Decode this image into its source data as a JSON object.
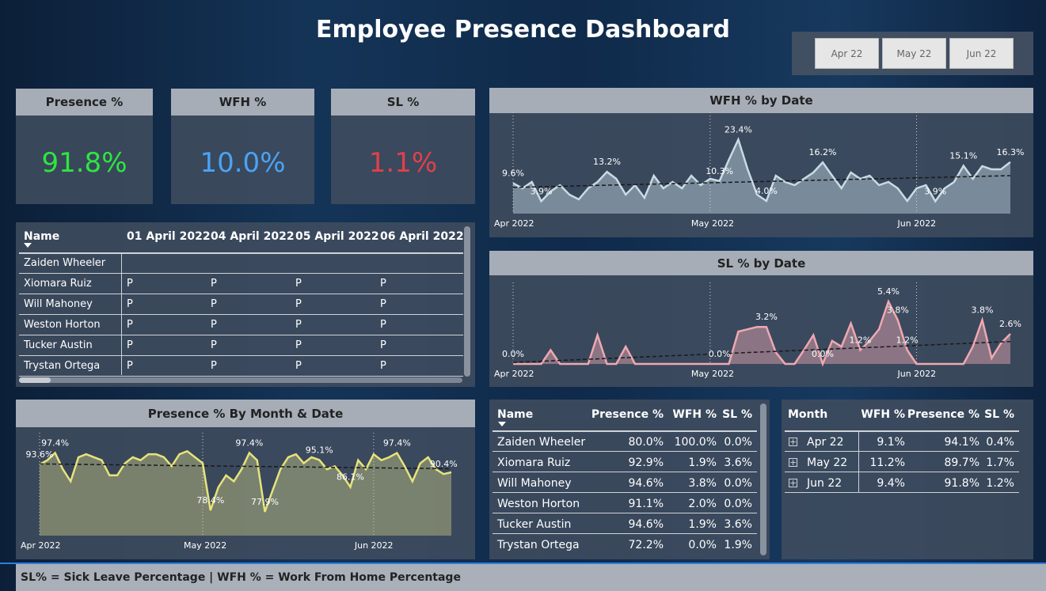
{
  "header": {
    "title": "Employee Presence Dashboard"
  },
  "slicers": [
    "Apr 22",
    "May 22",
    "Jun 22"
  ],
  "kpis": [
    {
      "title": "Presence %",
      "value": "91.8%",
      "color": "#2ee63f"
    },
    {
      "title": "WFH %",
      "value": "10.0%",
      "color": "#4aa3f5"
    },
    {
      "title": "SL %",
      "value": "1.1%",
      "color": "#e0404a"
    }
  ],
  "attendance_table": {
    "columns": [
      "Name",
      "01 April 2022",
      "04 April 2022",
      "05 April 2022",
      "06 April 2022"
    ],
    "rows": [
      {
        "name": "Zaiden Wheeler",
        "cells": []
      },
      {
        "name": "Xiomara Ruiz",
        "cells": [
          "P",
          "P",
          "P",
          "P"
        ]
      },
      {
        "name": "Will Mahoney",
        "cells": [
          "P",
          "P",
          "P",
          "P"
        ]
      },
      {
        "name": "Weston Horton",
        "cells": [
          "P",
          "P",
          "P",
          "P"
        ]
      },
      {
        "name": "Tucker Austin",
        "cells": [
          "P",
          "P",
          "P",
          "P"
        ]
      },
      {
        "name": "Trystan Ortega",
        "cells": [
          "P",
          "P",
          "P",
          "P"
        ]
      }
    ]
  },
  "summary_table": {
    "columns": [
      "Name",
      "Presence %",
      "WFH %",
      "SL %"
    ],
    "rows": [
      [
        "Zaiden Wheeler",
        "80.0%",
        "100.0%",
        "0.0%"
      ],
      [
        "Xiomara Ruiz",
        "92.9%",
        "1.9%",
        "3.6%"
      ],
      [
        "Will Mahoney",
        "94.6%",
        "3.8%",
        "0.0%"
      ],
      [
        "Weston Horton",
        "91.1%",
        "2.0%",
        "0.0%"
      ],
      [
        "Tucker Austin",
        "94.6%",
        "1.9%",
        "3.6%"
      ],
      [
        "Trystan Ortega",
        "72.2%",
        "0.0%",
        "1.9%"
      ]
    ]
  },
  "month_table": {
    "columns": [
      "Month",
      "WFH %",
      "Presence %",
      "SL %"
    ],
    "rows": [
      [
        "Apr 22",
        "9.1%",
        "94.1%",
        "0.4%"
      ],
      [
        "May 22",
        "11.2%",
        "89.7%",
        "1.7%"
      ],
      [
        "Jun 22",
        "9.4%",
        "91.8%",
        "1.2%"
      ]
    ]
  },
  "footer": {
    "text": "SL% = Sick Leave Percentage | WFH % = Work From Home Percentage"
  },
  "chart_data": [
    {
      "type": "line",
      "title": "WFH % by Date",
      "color": "#c9dbe3",
      "trend": true,
      "x": [
        0,
        1,
        2,
        3,
        4,
        5,
        6,
        7,
        8,
        9,
        10,
        11,
        12,
        13,
        14,
        15,
        16,
        17,
        18,
        19,
        20,
        21,
        22,
        23,
        24,
        25,
        26,
        27,
        28,
        29,
        30,
        31,
        32,
        33,
        34,
        35,
        36,
        37,
        38,
        39,
        40,
        41,
        42,
        43,
        44,
        45,
        46,
        47,
        48,
        49,
        50,
        51,
        52,
        53
      ],
      "xlim": [
        0,
        53
      ],
      "xticks": [
        {
          "value": 0,
          "label": "Apr 2022"
        },
        {
          "value": 21,
          "label": "May 2022"
        },
        {
          "value": 43,
          "label": "Jun 2022"
        }
      ],
      "ylim": [
        0,
        30
      ],
      "values": [
        9.6,
        8,
        10,
        3.9,
        7,
        9,
        6,
        4.5,
        8,
        10,
        13.2,
        11,
        6,
        9,
        5,
        12,
        8,
        10,
        8,
        12,
        9,
        11,
        10.3,
        17,
        23.4,
        14,
        6,
        4.0,
        12,
        10,
        9,
        11,
        13,
        16.2,
        12,
        8,
        13,
        11,
        12,
        9,
        10,
        8,
        4,
        8,
        9,
        3.9,
        8,
        10,
        15.1,
        11,
        15,
        14,
        14,
        16.3
      ],
      "value_labels": [
        "9.6%",
        null,
        null,
        "3.9%",
        null,
        null,
        null,
        null,
        null,
        null,
        "13.2%",
        null,
        null,
        null,
        null,
        null,
        null,
        null,
        null,
        null,
        null,
        null,
        "10.3%",
        null,
        "23.4%",
        null,
        null,
        "4.0%",
        null,
        null,
        null,
        null,
        null,
        "16.2%",
        null,
        null,
        null,
        null,
        null,
        null,
        null,
        null,
        null,
        null,
        null,
        "3.9%",
        null,
        null,
        "15.1%",
        null,
        null,
        null,
        null,
        "16.3%"
      ]
    },
    {
      "type": "line",
      "title": "SL % by Date",
      "color": "#f0a8b0",
      "trend": true,
      "x": [
        0,
        1,
        2,
        3,
        4,
        5,
        6,
        7,
        8,
        9,
        10,
        11,
        12,
        13,
        14,
        15,
        16,
        17,
        18,
        19,
        20,
        21,
        22,
        23,
        24,
        25,
        26,
        27,
        28,
        29,
        30,
        31,
        32,
        33,
        34,
        35,
        36,
        37,
        38,
        39,
        40,
        41,
        42,
        43,
        44,
        45,
        46,
        47,
        48,
        49,
        50,
        51,
        52,
        53
      ],
      "xlim": [
        0,
        53
      ],
      "xticks": [
        {
          "value": 0,
          "label": "Apr 2022"
        },
        {
          "value": 21,
          "label": "May 2022"
        },
        {
          "value": 43,
          "label": "Jun 2022"
        }
      ],
      "ylim": [
        0,
        6.5
      ],
      "values": [
        0.0,
        0,
        0,
        0,
        1.2,
        0,
        0,
        0,
        0,
        2.5,
        0,
        0,
        1.5,
        0,
        0,
        0,
        0,
        0,
        0,
        0,
        0,
        0,
        0.0,
        0,
        2.8,
        3,
        3.2,
        3.2,
        1,
        0,
        0,
        1.2,
        2.5,
        0.0,
        2,
        1.5,
        3.5,
        1.2,
        2,
        3,
        5.4,
        3.8,
        1.2,
        0,
        0,
        0,
        0,
        0,
        0,
        1.5,
        3.8,
        0.5,
        1.8,
        2.6
      ],
      "value_labels": [
        "0.0%",
        null,
        null,
        null,
        null,
        null,
        null,
        null,
        null,
        null,
        null,
        null,
        null,
        null,
        null,
        null,
        null,
        null,
        null,
        null,
        null,
        null,
        "0.0%",
        null,
        null,
        null,
        null,
        "3.2%",
        null,
        null,
        null,
        null,
        null,
        "0.0%",
        null,
        null,
        null,
        "1.2%",
        null,
        null,
        "5.4%",
        "3.8%",
        "1.2%",
        null,
        null,
        null,
        null,
        null,
        null,
        null,
        "3.8%",
        null,
        null,
        "2.6%"
      ]
    },
    {
      "type": "line",
      "title": "Presence % By Month & Date",
      "color": "#e8e37a",
      "trend": true,
      "x": [
        0,
        1,
        2,
        3,
        4,
        5,
        6,
        7,
        8,
        9,
        10,
        11,
        12,
        13,
        14,
        15,
        16,
        17,
        18,
        19,
        20,
        21,
        22,
        23,
        24,
        25,
        26,
        27,
        28,
        29,
        30,
        31,
        32,
        33,
        34,
        35,
        36,
        37,
        38,
        39,
        40,
        41,
        42,
        43,
        44,
        45,
        46,
        47,
        48,
        49,
        50,
        51,
        52,
        53
      ],
      "xlim": [
        0,
        53
      ],
      "xticks": [
        {
          "value": 0,
          "label": "Apr 2022"
        },
        {
          "value": 21,
          "label": "May 2022"
        },
        {
          "value": 43,
          "label": "Jun 2022"
        }
      ],
      "ylim": [
        70,
        102
      ],
      "values": [
        93.6,
        95,
        97.4,
        92,
        88,
        96,
        97,
        96,
        95,
        90,
        90,
        94,
        96,
        95,
        97,
        97,
        96,
        93,
        97,
        98,
        96,
        94,
        78.4,
        86,
        90,
        88,
        92,
        97.4,
        95,
        77.9,
        85,
        92,
        96,
        97,
        94,
        96,
        95.1,
        92,
        93,
        90,
        86.1,
        95,
        92,
        97,
        95,
        96,
        97.4,
        93,
        88,
        94,
        96,
        92,
        90.4,
        91
      ],
      "value_labels": [
        "93.6%",
        null,
        "97.4%",
        null,
        null,
        null,
        null,
        null,
        null,
        null,
        null,
        null,
        null,
        null,
        null,
        null,
        null,
        null,
        null,
        null,
        null,
        null,
        "78.4%",
        null,
        null,
        null,
        null,
        "97.4%",
        null,
        "77.9%",
        null,
        null,
        null,
        null,
        null,
        null,
        "95.1%",
        null,
        null,
        null,
        "86.1%",
        null,
        null,
        null,
        null,
        null,
        "97.4%",
        null,
        null,
        null,
        null,
        null,
        "90.4%",
        null
      ]
    }
  ]
}
